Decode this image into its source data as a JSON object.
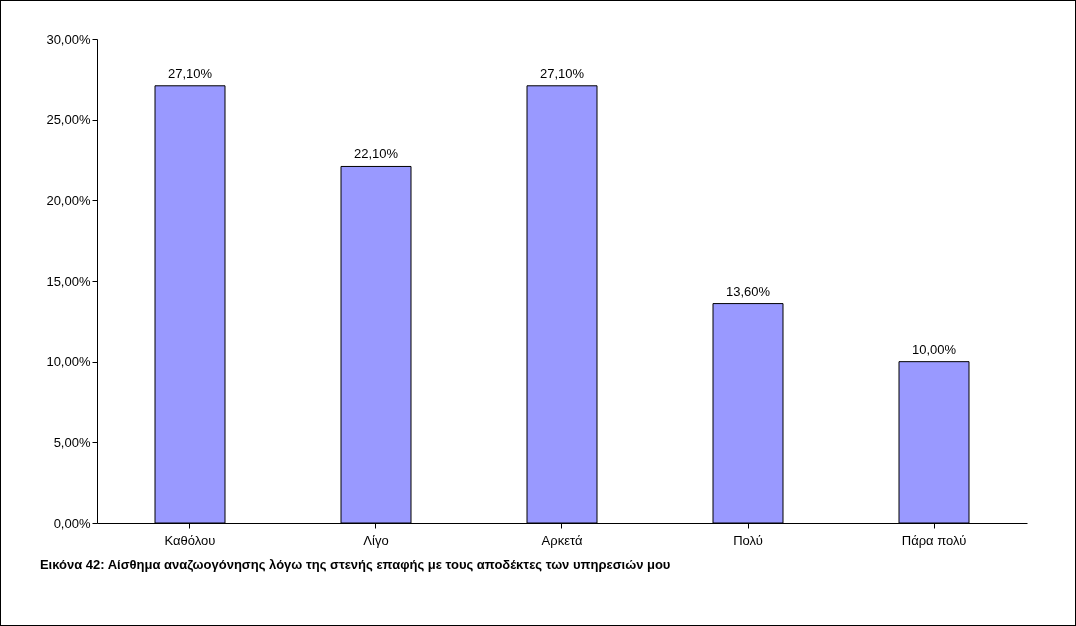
{
  "chart_data": {
    "type": "bar",
    "categories": [
      "Καθόλου",
      "Λίγο",
      "Αρκετά",
      "Πολύ",
      "Πάρα πολύ"
    ],
    "values": [
      27.1,
      22.1,
      27.1,
      13.6,
      10.0
    ],
    "value_labels": [
      "27,10%",
      "22,10%",
      "27,10%",
      "13,60%",
      "10,00%"
    ],
    "color": "#9999ff",
    "ylim": [
      0,
      30
    ],
    "yticks": [
      {
        "value": 0,
        "label": "0,00%"
      },
      {
        "value": 5,
        "label": "5,00%"
      },
      {
        "value": 10,
        "label": "10,00%"
      },
      {
        "value": 15,
        "label": "15,00%"
      },
      {
        "value": 20,
        "label": "20,00%"
      },
      {
        "value": 25,
        "label": "25,00%"
      },
      {
        "value": 30,
        "label": "30,00%"
      }
    ],
    "grid": false,
    "annotations": [
      "Εικόνα 42: Αίσθημα αναζωογόνησης λόγω της στενής επαφής με τους αποδέκτες των υπηρεσιών μου"
    ]
  }
}
